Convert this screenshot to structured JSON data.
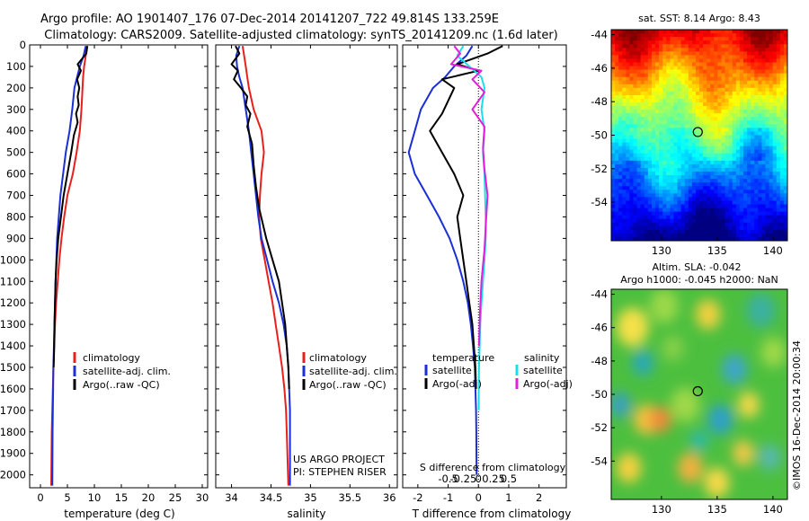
{
  "header": {
    "title_line1": "Argo profile: AO 1901407_176 07-Dec-2014 20141207_722 49.814S 133.259E",
    "title_line2": "Climatology: CARS2009. Satellite-adjusted climatology: synTS_20141209.nc (1.6d later)"
  },
  "colors": {
    "climatology": "#e8201c",
    "satellite": "#1a2fd6",
    "argo": "#000000",
    "sal_satellite": "#19e0e8",
    "sal_argo": "#e020d8"
  },
  "chart_data": [
    {
      "type": "line",
      "id": "temperature",
      "xlabel": "temperature (deg C)",
      "ylabel": "",
      "xlim": [
        -2,
        31
      ],
      "ylim": [
        2060,
        0
      ],
      "xticks": [
        "0",
        "5",
        "10",
        "15",
        "20",
        "25",
        "30"
      ],
      "xtick_values": [
        0,
        5,
        10,
        15,
        20,
        25,
        30
      ],
      "yticks": [
        "0",
        "100",
        "200",
        "300",
        "400",
        "500",
        "600",
        "700",
        "800",
        "900",
        "1000",
        "1100",
        "1200",
        "1300",
        "1400",
        "1500",
        "1600",
        "1700",
        "1800",
        "1900",
        "2000"
      ],
      "ytick_values": [
        0,
        100,
        200,
        300,
        400,
        500,
        600,
        700,
        800,
        900,
        1000,
        1100,
        1200,
        1300,
        1400,
        1500,
        1600,
        1700,
        1800,
        1900,
        2000
      ],
      "legend": [
        "climatology",
        "satellite-adj. clim.",
        "Argo(..raw -QC)"
      ],
      "series": [
        {
          "name": "climatology",
          "color": "#e8201c",
          "x": [
            8.6,
            8.4,
            8.1,
            7.9,
            7.8,
            7.6,
            7.3,
            6.7,
            6.0,
            5.0,
            4.4,
            3.9,
            3.5,
            3.2,
            2.9,
            2.7,
            2.55,
            2.4,
            2.3,
            2.2,
            2.1,
            2.0
          ],
          "y": [
            5,
            50,
            100,
            150,
            200,
            300,
            400,
            500,
            600,
            700,
            800,
            900,
            1000,
            1100,
            1200,
            1300,
            1400,
            1500,
            1600,
            1700,
            1800,
            2050
          ]
        },
        {
          "name": "satellite-adj. clim.",
          "color": "#1a2fd6",
          "x": [
            8.4,
            8.0,
            7.3,
            6.8,
            6.3,
            5.9,
            5.4,
            4.7,
            4.2,
            3.7,
            3.4,
            3.1,
            2.95,
            2.8,
            2.7,
            2.6,
            2.5,
            2.4,
            2.35,
            2.3,
            2.25,
            2.2
          ],
          "y": [
            5,
            50,
            100,
            150,
            200,
            300,
            400,
            500,
            600,
            700,
            800,
            900,
            1000,
            1100,
            1200,
            1300,
            1400,
            1500,
            1600,
            1700,
            1800,
            2050
          ]
        },
        {
          "name": "Argo(..raw -QC)",
          "color": "#000000",
          "x": [
            8.7,
            8.5,
            6.9,
            7.5,
            6.8,
            7.2,
            6.9,
            7.1,
            6.6,
            6.9,
            6.2,
            5.7,
            5.0,
            4.3,
            3.8,
            3.3,
            3.0,
            2.8,
            2.7,
            2.6,
            2.55,
            2.45
          ],
          "y": [
            5,
            40,
            90,
            120,
            160,
            200,
            240,
            280,
            320,
            360,
            420,
            500,
            600,
            700,
            800,
            900,
            1000,
            1100,
            1200,
            1300,
            1400,
            1500
          ]
        }
      ]
    },
    {
      "type": "line",
      "id": "salinity",
      "xlabel": "salinity",
      "ylabel": "",
      "xlim": [
        33.8,
        36.1
      ],
      "ylim": [
        2060,
        0
      ],
      "xticks": [
        "34",
        "34.5",
        "35",
        "35.5",
        "36"
      ],
      "xtick_values": [
        34,
        34.5,
        35,
        35.5,
        36
      ],
      "legend": [
        "climatology",
        "satellite-adj. clim.",
        "Argo(..raw -QC)"
      ],
      "annotations": [
        "US ARGO PROJECT",
        "PI: STEPHEN RISER"
      ],
      "series": [
        {
          "name": "climatology",
          "color": "#e8201c",
          "x": [
            34.14,
            34.16,
            34.18,
            34.2,
            34.22,
            34.28,
            34.38,
            34.41,
            34.38,
            34.36,
            34.35,
            34.37,
            34.42,
            34.47,
            34.52,
            34.56,
            34.6,
            34.64,
            34.67,
            34.69,
            34.7,
            34.72
          ],
          "y": [
            5,
            50,
            100,
            150,
            200,
            300,
            400,
            500,
            600,
            700,
            800,
            900,
            1000,
            1100,
            1200,
            1300,
            1400,
            1500,
            1600,
            1700,
            1800,
            2050
          ]
        },
        {
          "name": "satellite-adj. clim.",
          "color": "#1a2fd6",
          "x": [
            34.1,
            34.06,
            34.07,
            34.1,
            34.14,
            34.18,
            34.22,
            34.25,
            34.28,
            34.31,
            34.34,
            34.38,
            34.45,
            34.52,
            34.6,
            34.66,
            34.7,
            34.72,
            34.73,
            34.74,
            34.74,
            34.74
          ],
          "y": [
            5,
            50,
            100,
            150,
            200,
            300,
            400,
            500,
            600,
            700,
            800,
            900,
            1000,
            1100,
            1200,
            1300,
            1400,
            1500,
            1600,
            1700,
            1800,
            2050
          ]
        },
        {
          "name": "Argo(..raw -QC)",
          "color": "#000000",
          "x": [
            34.05,
            34.1,
            34.0,
            34.08,
            34.03,
            34.12,
            34.2,
            34.18,
            34.24,
            34.2,
            34.26,
            34.28,
            34.31,
            34.35,
            34.44,
            34.52,
            34.6,
            34.64,
            34.68,
            34.7,
            34.72,
            34.73
          ],
          "y": [
            5,
            40,
            90,
            120,
            160,
            200,
            240,
            280,
            320,
            380,
            460,
            560,
            660,
            760,
            900,
            1000,
            1100,
            1200,
            1300,
            1400,
            1500,
            1600
          ]
        }
      ]
    },
    {
      "type": "line",
      "id": "difference",
      "xlabel": "T difference from climatology",
      "xlabel2": "S difference from climatology",
      "xlim": [
        -2.5,
        2.9
      ],
      "ylim": [
        2060,
        0
      ],
      "xticks": [
        "-2",
        "-1",
        "0",
        "1",
        "2"
      ],
      "xtick_values": [
        -2,
        -1,
        0,
        1,
        2
      ],
      "xticks_s": [
        "-0.5",
        "-0.25",
        "0",
        "0.25",
        "0.5"
      ],
      "xtick_values_s": [
        -0.5,
        -0.25,
        0,
        0.25,
        0.5
      ],
      "legend_titles": [
        "temperature",
        "salinity"
      ],
      "legend": [
        "satellite",
        "Argo(-adj)",
        "satellite",
        "Argo(-adj)"
      ],
      "series": [
        {
          "name": "satellite",
          "color": "#1a2fd6",
          "x": [
            -0.2,
            -0.4,
            -0.8,
            -1.1,
            -1.5,
            -1.9,
            -2.1,
            -2.3,
            -2.1,
            -1.7,
            -1.3,
            -0.95,
            -0.7,
            -0.5,
            -0.35,
            -0.25,
            -0.18,
            -0.12,
            -0.1,
            -0.08,
            -0.07,
            -0.06
          ],
          "y": [
            5,
            50,
            100,
            150,
            200,
            300,
            400,
            500,
            600,
            700,
            800,
            900,
            1000,
            1100,
            1200,
            1300,
            1400,
            1500,
            1600,
            1700,
            1800,
            2000
          ]
        },
        {
          "name": "Argo(-adj)",
          "color": "#000000",
          "x": [
            0.8,
            0.3,
            -0.7,
            0.0,
            -1.2,
            -0.8,
            -1.0,
            -1.2,
            -1.6,
            -1.2,
            -0.8,
            -0.5,
            -0.7,
            -0.6,
            -0.5,
            -0.4,
            -0.3,
            -0.2,
            -0.15,
            -0.1,
            -0.08
          ],
          "y": [
            5,
            40,
            90,
            120,
            160,
            200,
            260,
            320,
            400,
            500,
            600,
            700,
            800,
            900,
            1000,
            1100,
            1200,
            1300,
            1400,
            1500,
            1600
          ]
        },
        {
          "name": "satellite",
          "color": "#19e0e8",
          "x": [
            -0.5,
            -0.7,
            -0.3,
            0.1,
            0.2,
            0.1,
            0.2,
            0.15,
            0.2,
            0.22,
            0.24,
            0.24,
            0.2,
            0.15,
            0.1,
            0.06,
            0.04,
            0.02,
            0.01,
            0.01
          ],
          "y": [
            5,
            50,
            100,
            150,
            200,
            300,
            400,
            500,
            600,
            700,
            800,
            900,
            1000,
            1100,
            1200,
            1300,
            1400,
            1500,
            1600,
            1700
          ]
        },
        {
          "name": "Argo(-adj)",
          "color": "#e020d8",
          "x": [
            -0.8,
            -0.6,
            -0.9,
            0.1,
            -0.2,
            0.2,
            -0.2,
            0.2,
            0.15,
            0.2,
            0.3,
            0.25,
            0.2,
            0.1,
            0.05,
            0.02
          ],
          "y": [
            5,
            40,
            90,
            120,
            160,
            220,
            300,
            380,
            480,
            580,
            700,
            820,
            950,
            1100,
            1250,
            1400
          ]
        }
      ]
    }
  ],
  "sst_map": {
    "title": "sat. SST: 8.14 Argo: 8.43",
    "xticks": [
      "130",
      "135",
      "140"
    ],
    "xtick_values": [
      130,
      135,
      140
    ],
    "yticks": [
      "-44",
      "-46",
      "-48",
      "-50",
      "-52",
      "-54"
    ],
    "ytick_values": [
      -44,
      -46,
      -48,
      -50,
      -52,
      -54
    ],
    "xlim": [
      125.5,
      141.3
    ],
    "ylim": [
      -56.3,
      -43.7
    ],
    "marker": [
      133.26,
      -49.81
    ]
  },
  "sla_map": {
    "title_line1": "Altim. SLA: -0.042",
    "title_line2": "Argo h1000: -0.045 h2000: NaN",
    "xticks": [
      "130",
      "135",
      "140"
    ],
    "xtick_values": [
      130,
      135,
      140
    ],
    "yticks": [
      "-44",
      "-46",
      "-48",
      "-50",
      "-52",
      "-54"
    ],
    "ytick_values": [
      -44,
      -46,
      -48,
      -50,
      -52,
      -54
    ],
    "xlim": [
      125.5,
      141.3
    ],
    "ylim": [
      -56.3,
      -43.7
    ],
    "marker": [
      133.26,
      -49.81
    ]
  },
  "credit": "©IMOS 16-Dec-2014 20:00:34"
}
